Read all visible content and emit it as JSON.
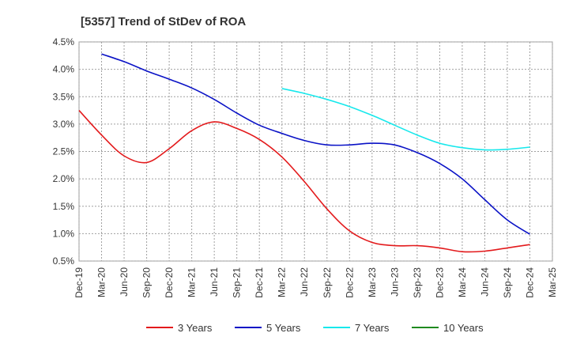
{
  "chart_data": {
    "type": "line",
    "title": "[5357]  Trend of StDev of ROA",
    "xlabel": "",
    "ylabel": "",
    "ylim": [
      0.5,
      4.5
    ],
    "y_ticks": [
      "0.5%",
      "1.0%",
      "1.5%",
      "2.0%",
      "2.5%",
      "3.0%",
      "3.5%",
      "4.0%",
      "4.5%"
    ],
    "y_tick_values": [
      0.5,
      1.0,
      1.5,
      2.0,
      2.5,
      3.0,
      3.5,
      4.0,
      4.5
    ],
    "categories": [
      "Dec-19",
      "Mar-20",
      "Jun-20",
      "Sep-20",
      "Dec-20",
      "Mar-21",
      "Jun-21",
      "Sep-21",
      "Dec-21",
      "Mar-22",
      "Jun-22",
      "Sep-22",
      "Dec-22",
      "Mar-23",
      "Jun-23",
      "Sep-23",
      "Dec-23",
      "Mar-24",
      "Jun-24",
      "Sep-24",
      "Dec-24",
      "Mar-25"
    ],
    "grid": true,
    "legend_position": "bottom",
    "series": [
      {
        "name": "3 Years",
        "color": "#e31a1c",
        "values": [
          3.25,
          2.8,
          2.42,
          2.3,
          2.55,
          2.88,
          3.04,
          2.92,
          2.72,
          2.4,
          1.95,
          1.45,
          1.05,
          0.84,
          0.78,
          0.78,
          0.74,
          0.67,
          0.68,
          0.74,
          0.8,
          null
        ]
      },
      {
        "name": "5 Years",
        "color": "#0a12c6",
        "values": [
          null,
          4.28,
          4.14,
          3.97,
          3.82,
          3.66,
          3.45,
          3.2,
          2.98,
          2.83,
          2.7,
          2.62,
          2.62,
          2.65,
          2.62,
          2.48,
          2.28,
          2.0,
          1.62,
          1.25,
          0.99,
          null
        ]
      },
      {
        "name": "7 Years",
        "color": "#17e8ec",
        "values": [
          null,
          null,
          null,
          null,
          null,
          null,
          null,
          null,
          null,
          3.65,
          3.56,
          3.45,
          3.32,
          3.16,
          2.98,
          2.8,
          2.65,
          2.57,
          2.53,
          2.54,
          2.58,
          null
        ]
      },
      {
        "name": "10 Years",
        "color": "#1f8a1f",
        "values": [
          null,
          null,
          null,
          null,
          null,
          null,
          null,
          null,
          null,
          null,
          null,
          null,
          null,
          null,
          null,
          null,
          null,
          null,
          null,
          null,
          null,
          null
        ]
      }
    ]
  }
}
